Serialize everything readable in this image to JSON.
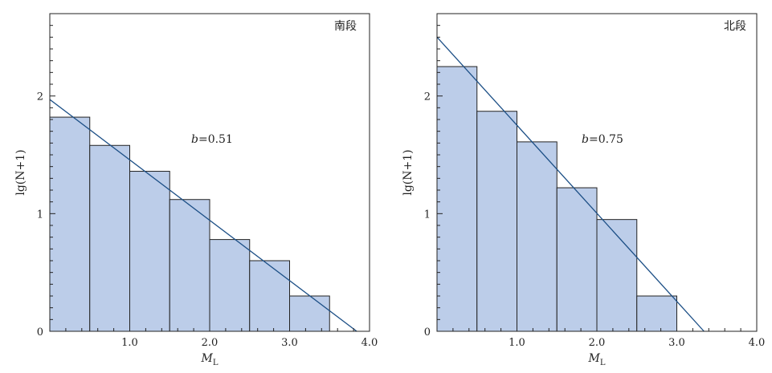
{
  "chart_data": [
    {
      "type": "bar",
      "panel_label": "南段",
      "xlabel": "M",
      "xlabel_sub": "L",
      "ylabel": "lg(N+1)",
      "xlim": [
        0,
        4
      ],
      "ylim": [
        0,
        2.7
      ],
      "x_ticks": [
        {
          "value": 1,
          "label": "1.0"
        },
        {
          "value": 2,
          "label": "2.0"
        },
        {
          "value": 3,
          "label": "3.0"
        },
        {
          "value": 4,
          "label": "4.0"
        }
      ],
      "y_ticks": [
        {
          "value": 0,
          "label": "0"
        },
        {
          "value": 1,
          "label": "1"
        },
        {
          "value": 2,
          "label": "2"
        }
      ],
      "bin_edges": [
        0,
        0.5,
        1.0,
        1.5,
        2.0,
        2.5,
        3.0,
        3.5
      ],
      "values": [
        1.82,
        1.58,
        1.36,
        1.12,
        0.78,
        0.6,
        0.3
      ],
      "fit_line": {
        "intercept": 1.97,
        "x_intercept": 3.84
      },
      "annotation": {
        "b": "b",
        "eq": "=0.51"
      }
    },
    {
      "type": "bar",
      "panel_label": "北段",
      "xlabel": "M",
      "xlabel_sub": "L",
      "ylabel": "lg(N+1)",
      "xlim": [
        0,
        4
      ],
      "ylim": [
        0,
        2.7
      ],
      "x_ticks": [
        {
          "value": 1,
          "label": "1.0"
        },
        {
          "value": 2,
          "label": "2.0"
        },
        {
          "value": 3,
          "label": "3.0"
        },
        {
          "value": 4,
          "label": "4.0"
        }
      ],
      "y_ticks": [
        {
          "value": 0,
          "label": "0"
        },
        {
          "value": 1,
          "label": "1"
        },
        {
          "value": 2,
          "label": "2"
        }
      ],
      "bin_edges": [
        0,
        0.5,
        1.0,
        1.5,
        2.0,
        2.5,
        3.0
      ],
      "values": [
        2.25,
        1.87,
        1.61,
        1.22,
        0.95,
        0.3
      ],
      "fit_line": {
        "intercept": 2.5,
        "x_intercept": 3.34
      },
      "annotation": {
        "b": "b",
        "eq": "=0.75"
      }
    }
  ],
  "colors": {
    "bar_fill": "#bccde9",
    "bar_stroke": "#222222",
    "fit_line": "#1c4f86",
    "axis": "#222222"
  }
}
